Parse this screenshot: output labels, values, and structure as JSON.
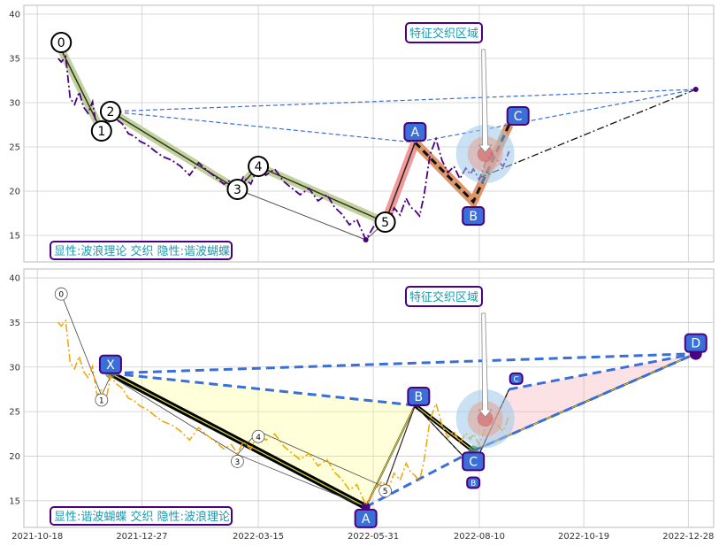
{
  "chart_data": [
    {
      "type": "line",
      "panel": "top",
      "ylim": [
        12,
        41
      ],
      "yticks": [
        15,
        20,
        25,
        30,
        35,
        40
      ],
      "xticks": [
        "2021-10-18",
        "2021-12-27",
        "2022-03-15",
        "2022-05-31",
        "2022-08-10",
        "2022-10-19",
        "2022-12-28"
      ],
      "grid": true,
      "price_series": {
        "color": "#4b0082",
        "x": [
          "2021-11-01",
          "2021-11-03",
          "2021-11-06",
          "2021-11-09",
          "2021-11-12",
          "2021-11-15",
          "2021-11-18",
          "2021-11-21",
          "2021-11-24",
          "2021-11-27",
          "2021-11-30",
          "2021-12-03",
          "2021-12-06",
          "2021-12-10",
          "2021-12-14",
          "2021-12-18",
          "2021-12-22",
          "2021-12-26",
          "2021-12-30",
          "2022-01-05",
          "2022-01-10",
          "2022-01-16",
          "2022-01-22",
          "2022-01-28",
          "2022-02-03",
          "2022-02-09",
          "2022-02-15",
          "2022-02-20",
          "2022-02-25",
          "2022-03-01",
          "2022-03-05",
          "2022-03-10",
          "2022-03-15",
          "2022-03-20",
          "2022-03-26",
          "2022-04-01",
          "2022-04-06",
          "2022-04-12",
          "2022-04-18",
          "2022-04-24",
          "2022-04-30",
          "2022-05-05",
          "2022-05-10",
          "2022-05-15",
          "2022-05-20",
          "2022-05-26",
          "2022-06-01",
          "2022-06-06",
          "2022-06-10",
          "2022-06-14",
          "2022-06-18",
          "2022-06-22",
          "2022-06-25",
          "2022-06-28",
          "2022-07-01",
          "2022-07-04",
          "2022-07-08",
          "2022-07-12",
          "2022-07-16",
          "2022-07-20",
          "2022-07-24",
          "2022-07-28",
          "2022-08-01",
          "2022-08-04",
          "2022-08-06",
          "2022-08-10",
          "2022-08-14",
          "2022-08-18",
          "2022-08-22",
          "2022-08-26",
          "2022-08-30"
        ],
        "y": [
          35,
          34.6,
          35.2,
          30.5,
          29.8,
          31.2,
          29.5,
          28.8,
          30.1,
          26.8,
          27.5,
          26.2,
          29,
          28.1,
          27.6,
          26.5,
          26.2,
          25.6,
          25.3,
          24.5,
          23.9,
          23.5,
          22.8,
          21.8,
          23.2,
          22.3,
          21.5,
          20.8,
          21.3,
          20.3,
          21.6,
          20.8,
          22.8,
          21.8,
          22.5,
          21.1,
          20.4,
          19.6,
          20.3,
          18.9,
          19.6,
          18.2,
          17.4,
          16.2,
          16.8,
          14.5,
          16.2,
          17.2,
          16.3,
          18.1,
          17.3,
          19.2,
          18.2,
          17.8,
          17.2,
          19.5,
          24.1,
          25.9,
          23.5,
          22.1,
          22.8,
          21.4,
          22.6,
          21.9,
          22.5,
          21.3,
          23.2,
          24.3,
          23.5,
          22.8,
          24.5
        ]
      },
      "waves": [
        {
          "label": "0",
          "x": "2021-11-03",
          "y": 36
        },
        {
          "label": "1",
          "x": "2021-11-30",
          "y": 26.8
        },
        {
          "label": "2",
          "x": "2021-12-06",
          "y": 29
        },
        {
          "label": "3",
          "x": "2022-03-01",
          "y": 20.2
        },
        {
          "label": "4",
          "x": "2022-03-15",
          "y": 22.8
        },
        {
          "label": "5",
          "x": "2022-06-08",
          "y": 16.5
        }
      ],
      "pattern_points": [
        {
          "label": "A",
          "x": "2022-06-28",
          "y": 25.5
        },
        {
          "label": "B",
          "x": "2022-08-06",
          "y": 18.8
        },
        {
          "label": "C",
          "x": "2022-08-30",
          "y": 27.5
        }
      ],
      "projection_targets": [
        {
          "x": "2023-01-02",
          "y": 31.5
        }
      ],
      "annotation": "特征交织区域",
      "label": "显性:波浪理论 交织 隐性:谐波蝴蝶"
    },
    {
      "type": "line",
      "panel": "bottom",
      "ylim": [
        12,
        41
      ],
      "yticks": [
        15,
        20,
        25,
        30,
        35,
        40
      ],
      "xticks": [
        "2021-10-18",
        "2021-12-27",
        "2022-03-15",
        "2022-05-31",
        "2022-08-10",
        "2022-10-19",
        "2022-12-28"
      ],
      "grid": true,
      "price_series": {
        "color": "#f0a500",
        "x": [
          "2021-11-01",
          "2021-11-03",
          "2021-11-06",
          "2021-11-09",
          "2021-11-12",
          "2021-11-15",
          "2021-11-18",
          "2021-11-21",
          "2021-11-24",
          "2021-11-27",
          "2021-11-30",
          "2021-12-03",
          "2021-12-06",
          "2021-12-10",
          "2021-12-14",
          "2021-12-18",
          "2021-12-22",
          "2021-12-26",
          "2021-12-30",
          "2022-01-05",
          "2022-01-10",
          "2022-01-16",
          "2022-01-22",
          "2022-01-28",
          "2022-02-03",
          "2022-02-09",
          "2022-02-15",
          "2022-02-20",
          "2022-02-25",
          "2022-03-01",
          "2022-03-05",
          "2022-03-10",
          "2022-03-15",
          "2022-03-20",
          "2022-03-26",
          "2022-04-01",
          "2022-04-06",
          "2022-04-12",
          "2022-04-18",
          "2022-04-24",
          "2022-04-30",
          "2022-05-05",
          "2022-05-10",
          "2022-05-15",
          "2022-05-20",
          "2022-05-26",
          "2022-06-01",
          "2022-06-06",
          "2022-06-10",
          "2022-06-14",
          "2022-06-18",
          "2022-06-22",
          "2022-06-25",
          "2022-06-28",
          "2022-07-01",
          "2022-07-04",
          "2022-07-08",
          "2022-07-12",
          "2022-07-16",
          "2022-07-20",
          "2022-07-24",
          "2022-07-28",
          "2022-08-01",
          "2022-08-04",
          "2022-08-06",
          "2022-08-10",
          "2022-08-14",
          "2022-08-18",
          "2022-08-22",
          "2022-08-26",
          "2022-08-30"
        ],
        "y": [
          35,
          34.6,
          35.2,
          30.5,
          29.8,
          31.2,
          29.5,
          28.8,
          30.1,
          26.8,
          27.5,
          26.2,
          29,
          28.1,
          27.6,
          26.5,
          26.2,
          25.6,
          25.3,
          24.5,
          23.9,
          23.5,
          22.8,
          21.8,
          23.2,
          22.3,
          21.5,
          20.8,
          21.3,
          20.3,
          21.6,
          20.8,
          22.8,
          21.8,
          22.5,
          21.1,
          20.4,
          19.6,
          20.3,
          18.9,
          19.6,
          18.2,
          17.4,
          16.2,
          16.8,
          14.5,
          16.2,
          17.2,
          16.3,
          18.1,
          17.3,
          19.2,
          18.2,
          17.8,
          17.2,
          19.5,
          24.1,
          25.9,
          23.5,
          22.1,
          22.8,
          21.4,
          22.6,
          21.9,
          22.5,
          21.3,
          23.2,
          24.3,
          23.5,
          22.8,
          24.5
        ]
      },
      "waves": [
        {
          "label": "0",
          "x": "2021-11-03",
          "y": 38.2
        },
        {
          "label": "1",
          "x": "2021-11-30",
          "y": 26.8
        },
        {
          "label": "2",
          "x": "2021-12-06",
          "y": 29
        },
        {
          "label": "3",
          "x": "2022-03-01",
          "y": 20.2
        },
        {
          "label": "4",
          "x": "2022-03-15",
          "y": 22.8
        },
        {
          "label": "5",
          "x": "2022-06-08",
          "y": 16.5
        }
      ],
      "pattern_points": [
        {
          "label": "X",
          "x": "2021-12-06",
          "y": 29.3
        },
        {
          "label": "A",
          "x": "2022-05-26",
          "y": 14.3
        },
        {
          "label": "B",
          "x": "2022-06-28",
          "y": 25.7
        },
        {
          "label": "C",
          "x": "2022-08-06",
          "y": 20.6
        },
        {
          "label": "D",
          "x": "2023-01-02",
          "y": 31.5
        },
        {
          "label": "B",
          "x": "2022-08-06",
          "y": 18.8
        },
        {
          "label": "C",
          "x": "2022-08-30",
          "y": 27.5
        }
      ],
      "annotation": "特征交织区域",
      "label": "显性:谐波蝴蝶 交织 隐性:波浪理论"
    }
  ],
  "colors": {
    "box_border": "#4b0082",
    "box_text": "#1a9ab0",
    "point_fill": "#3a6fd8",
    "dashed_blue": "#3a6fd8",
    "wave_band": "#b8c890",
    "grid": "#cccccc"
  }
}
